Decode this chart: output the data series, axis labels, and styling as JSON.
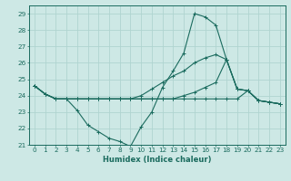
{
  "xlabel": "Humidex (Indice chaleur)",
  "xlim": [
    -0.5,
    23.5
  ],
  "ylim": [
    21,
    29.5
  ],
  "yticks": [
    21,
    22,
    23,
    24,
    25,
    26,
    27,
    28,
    29
  ],
  "xticks": [
    0,
    1,
    2,
    3,
    4,
    5,
    6,
    7,
    8,
    9,
    10,
    11,
    12,
    13,
    14,
    15,
    16,
    17,
    18,
    19,
    20,
    21,
    22,
    23
  ],
  "bg_color": "#cde8e5",
  "grid_color": "#b0d4d0",
  "line_color": "#1a6b5e",
  "lines": [
    [
      24.6,
      24.1,
      23.8,
      23.8,
      23.1,
      22.2,
      21.8,
      21.4,
      21.2,
      20.9,
      22.1,
      23.0,
      24.5,
      25.5,
      26.6,
      29.0,
      28.8,
      28.3,
      26.2,
      24.4,
      24.3,
      23.7,
      23.6,
      23.5
    ],
    [
      24.6,
      24.1,
      23.8,
      23.8,
      23.8,
      23.8,
      23.8,
      23.8,
      23.8,
      23.8,
      23.8,
      23.8,
      23.8,
      23.8,
      23.8,
      23.8,
      23.8,
      23.8,
      23.8,
      23.8,
      24.3,
      23.7,
      23.6,
      23.5
    ],
    [
      24.6,
      24.1,
      23.8,
      23.8,
      23.8,
      23.8,
      23.8,
      23.8,
      23.8,
      23.8,
      24.0,
      24.4,
      24.8,
      25.2,
      25.5,
      26.0,
      26.3,
      26.5,
      26.2,
      24.4,
      24.3,
      23.7,
      23.6,
      23.5
    ],
    [
      24.6,
      24.1,
      23.8,
      23.8,
      23.8,
      23.8,
      23.8,
      23.8,
      23.8,
      23.8,
      23.8,
      23.8,
      23.8,
      23.8,
      24.0,
      24.2,
      24.5,
      24.8,
      26.2,
      24.4,
      24.3,
      23.7,
      23.6,
      23.5
    ]
  ]
}
